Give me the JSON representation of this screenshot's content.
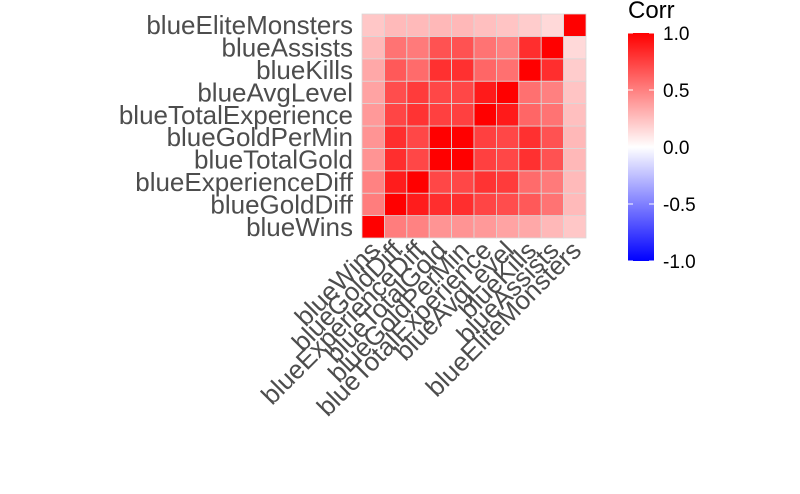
{
  "chart_data": {
    "type": "heatmap",
    "variables": [
      "blueWins",
      "blueGoldDiff",
      "blueExperienceDiff",
      "blueTotalGold",
      "blueGoldPerMin",
      "blueTotalExperience",
      "blueAvgLevel",
      "blueKills",
      "blueAssists",
      "blueEliteMonsters"
    ],
    "matrix": [
      [
        1.0,
        0.51,
        0.49,
        0.42,
        0.42,
        0.4,
        0.36,
        0.34,
        0.28,
        0.22
      ],
      [
        0.51,
        1.0,
        0.89,
        0.82,
        0.82,
        0.73,
        0.7,
        0.65,
        0.55,
        0.27
      ],
      [
        0.49,
        0.89,
        1.0,
        0.72,
        0.72,
        0.8,
        0.77,
        0.58,
        0.52,
        0.27
      ],
      [
        0.42,
        0.82,
        0.72,
        1.0,
        1.0,
        0.75,
        0.72,
        0.81,
        0.68,
        0.28
      ],
      [
        0.42,
        0.82,
        0.72,
        1.0,
        1.0,
        0.75,
        0.72,
        0.81,
        0.68,
        0.28
      ],
      [
        0.4,
        0.73,
        0.8,
        0.75,
        0.75,
        1.0,
        0.9,
        0.6,
        0.55,
        0.25
      ],
      [
        0.36,
        0.7,
        0.77,
        0.72,
        0.72,
        0.9,
        1.0,
        0.56,
        0.5,
        0.23
      ],
      [
        0.34,
        0.65,
        0.58,
        0.81,
        0.81,
        0.6,
        0.56,
        1.0,
        0.82,
        0.2
      ],
      [
        0.28,
        0.55,
        0.52,
        0.68,
        0.68,
        0.55,
        0.5,
        0.82,
        1.0,
        0.15
      ],
      [
        0.22,
        0.27,
        0.27,
        0.28,
        0.28,
        0.25,
        0.23,
        0.2,
        0.15,
        1.0
      ]
    ],
    "legend": {
      "title": "Corr",
      "ticks": [
        "1.0",
        "0.5",
        "0.0",
        "-0.5",
        "-1.0"
      ],
      "tick_values": [
        1.0,
        0.5,
        0.0,
        -0.5,
        -1.0
      ],
      "range": [
        -1,
        1
      ],
      "colors": {
        "low": "#0000ff",
        "mid": "#ffffff",
        "high": "#ff0000"
      },
      "placement": "right"
    },
    "grid": false
  }
}
